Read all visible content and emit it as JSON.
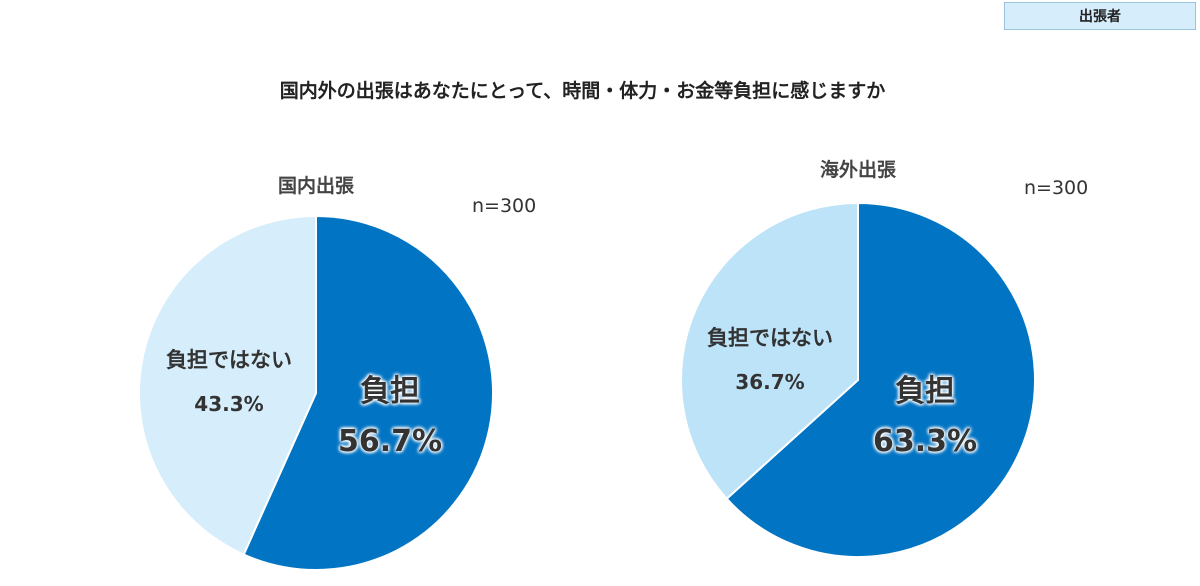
{
  "badge": "出張者",
  "title": "国内外の出張はあなたにとって、時間・体力・お金等負担に感じますか",
  "chart_data": [
    {
      "type": "pie",
      "title": "国内出張",
      "sample": "n=300",
      "slices": [
        {
          "label": "負担",
          "value": 56.7,
          "display": "56.7%",
          "color": "#0274c4"
        },
        {
          "label": "負担ではない",
          "value": 43.3,
          "display": "43.3%",
          "color": "#d6eefb"
        }
      ],
      "start_angle_deg": 0,
      "direction": "clockwise"
    },
    {
      "type": "pie",
      "title": "海外出張",
      "sample": "n=300",
      "slices": [
        {
          "label": "負担",
          "value": 63.3,
          "display": "63.3%",
          "color": "#0274c4"
        },
        {
          "label": "負担ではない",
          "value": 36.7,
          "display": "36.7%",
          "color": "#bde3f8"
        }
      ],
      "start_angle_deg": 0,
      "direction": "clockwise"
    }
  ]
}
